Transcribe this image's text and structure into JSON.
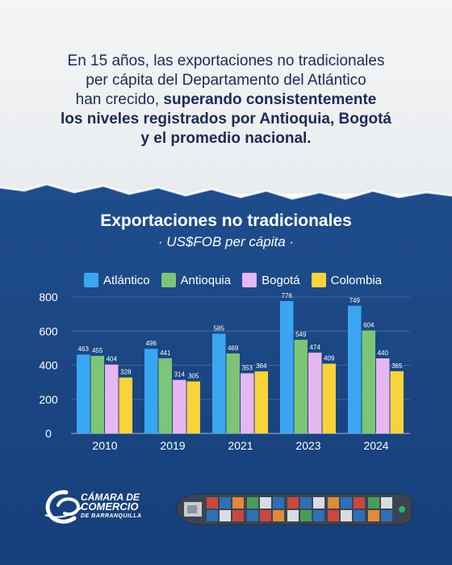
{
  "intro": {
    "line1": "En 15 años, las exportaciones no tradicionales",
    "line2": "per cápita del Departamento del Atlántico",
    "line3a": "han crecido, ",
    "line3b": "superando consistentemente",
    "line4": "los niveles registrados por Antioquia, Bogotá",
    "line5": "y el promedio nacional."
  },
  "chart_data": {
    "type": "bar",
    "title": "Exportaciones no tradicionales",
    "subtitle": "· US$FOB per cápita ·",
    "categories": [
      "2010",
      "2019",
      "2021",
      "2023",
      "2024"
    ],
    "series": [
      {
        "name": "Atlántico",
        "color": "#3aa6f2",
        "values": [
          463,
          496,
          585,
          776,
          749
        ]
      },
      {
        "name": "Antioquia",
        "color": "#7cc576",
        "values": [
          455,
          441,
          469,
          549,
          604
        ]
      },
      {
        "name": "Bogotá",
        "color": "#e7b7f2",
        "values": [
          404,
          314,
          353,
          474,
          440
        ]
      },
      {
        "name": "Colombia",
        "color": "#f9d33a",
        "values": [
          328,
          305,
          364,
          409,
          365
        ]
      }
    ],
    "yticks": [
      "0",
      "200",
      "400",
      "600",
      "800"
    ],
    "ylim": [
      0,
      800
    ],
    "legend_position": "top",
    "grid": true
  },
  "logo": {
    "line1": "CÁMARA DE",
    "line2": "COMERCIO",
    "line3": "DE BARRANQUILLA"
  }
}
